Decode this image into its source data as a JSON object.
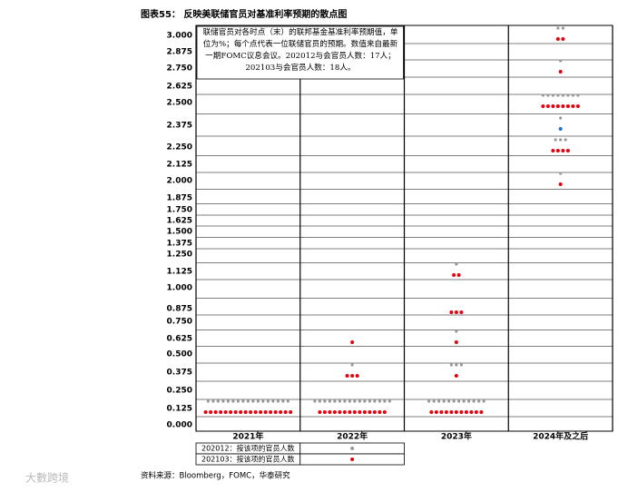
{
  "chart_data": {
    "type": "dot-plot",
    "title": "图表55： 反映美联储官员对基准利率预期的散点图",
    "annotation": "联储官员对各时点（末）的联邦基金基准利率预期值，单位为%；每个点代表一位联储官员的预期。数值来自最新一期FOMC议息会议。202012与会官员人数：17人；202103与会官员人数：18人。",
    "source": "资料来源：Bloomberg，FOMC，华泰研究",
    "watermark": "大數跨境",
    "categories": [
      "2021年",
      "2022年",
      "2023年",
      "2024年及之后"
    ],
    "yticks": [
      {
        "value": 3,
        "label": "3.000"
      },
      {
        "value": 2.875,
        "label": "2.875"
      },
      {
        "value": 2.75,
        "label": "2.750"
      },
      {
        "value": 2.625,
        "label": "2.625"
      },
      {
        "value": 2.5,
        "label": "2.500"
      },
      {
        "value": 2.375,
        "label": "2.375"
      },
      {
        "value": 2.25,
        "label": "2.250"
      },
      {
        "value": 2.125,
        "label": "2.125"
      },
      {
        "value": 2,
        "label": "2.000"
      },
      {
        "value": 1.875,
        "label": "1.875"
      },
      {
        "value": 1.75,
        "label": "1.750"
      },
      {
        "value": 1.625,
        "label": "1.625"
      },
      {
        "value": 1.5,
        "label": "1.500"
      },
      {
        "value": 1.375,
        "label": "1.375"
      },
      {
        "value": 1.25,
        "label": "1.250"
      },
      {
        "value": 1.125,
        "label": "1.125"
      },
      {
        "value": 1,
        "label": "1.000"
      },
      {
        "value": 0.875,
        "label": "0.875"
      },
      {
        "value": 0.75,
        "label": "0.750"
      },
      {
        "value": 0.625,
        "label": "0.625"
      },
      {
        "value": 0.5,
        "label": "0.500"
      },
      {
        "value": 0.375,
        "label": "0.375"
      },
      {
        "value": 0.25,
        "label": "0.250"
      },
      {
        "value": 0.125,
        "label": "0.125"
      },
      {
        "value": 0,
        "label": "0.000"
      }
    ],
    "series": [
      {
        "name": "202012：按该项的官员人数",
        "color": "#999999",
        "dots": [
          [
            {
              "rate": 0.125,
              "count": 17
            }
          ],
          [
            {
              "rate": 0.125,
              "count": 16
            },
            {
              "rate": 0.375,
              "count": 1
            }
          ],
          [
            {
              "rate": 0.125,
              "count": 12
            },
            {
              "rate": 0.375,
              "count": 3
            },
            {
              "rate": 0.625,
              "count": 1
            },
            {
              "rate": 1.125,
              "count": 1
            }
          ],
          [
            {
              "rate": 2,
              "count": 1
            },
            {
              "rate": 2.25,
              "count": 3
            },
            {
              "rate": 2.375,
              "count": 1
            },
            {
              "rate": 2.5,
              "count": 8
            },
            {
              "rate": 2.75,
              "count": 1
            },
            {
              "rate": 3,
              "count": 2
            }
          ]
        ]
      },
      {
        "name": "202103：按该项的官员人数",
        "color": "#e8000b",
        "dots": [
          [
            {
              "rate": 0.125,
              "count": 18
            }
          ],
          [
            {
              "rate": 0.125,
              "count": 14
            },
            {
              "rate": 0.375,
              "count": 3
            },
            {
              "rate": 0.625,
              "count": 1
            }
          ],
          [
            {
              "rate": 0.125,
              "count": 11
            },
            {
              "rate": 0.375,
              "count": 1
            },
            {
              "rate": 0.625,
              "count": 1
            },
            {
              "rate": 0.875,
              "count": 3
            },
            {
              "rate": 1.125,
              "count": 2
            }
          ],
          [
            {
              "rate": 2,
              "count": 1
            },
            {
              "rate": 2.25,
              "count": 4
            },
            {
              "rate": 2.375,
              "count": 1,
              "color": "#1f6fd1"
            },
            {
              "rate": 2.5,
              "count": 8
            },
            {
              "rate": 2.75,
              "count": 1
            },
            {
              "rate": 3,
              "count": 2
            }
          ]
        ]
      }
    ]
  }
}
